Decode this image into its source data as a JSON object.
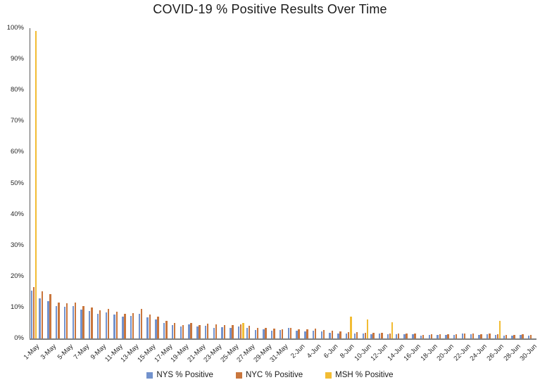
{
  "chart_data": {
    "type": "bar",
    "title": "COVID-19 % Positive Results Over Time",
    "xlabel": "",
    "ylabel": "",
    "ylim": [
      0,
      100
    ],
    "grid": false,
    "legend_position": "bottom",
    "y_ticks": [
      "0%",
      "10%",
      "20%",
      "30%",
      "40%",
      "50%",
      "60%",
      "70%",
      "80%",
      "90%",
      "100%"
    ],
    "x_tick_labels": [
      "1-May",
      "3-May",
      "5-May",
      "7-May",
      "9-May",
      "11-May",
      "13-May",
      "15-May",
      "17-May",
      "19-May",
      "21-May",
      "23-May",
      "25-May",
      "27-May",
      "29-May",
      "31-May",
      "2-Jun",
      "4-Jun",
      "6-Jun",
      "8-Jun",
      "10-Jun",
      "12-Jun",
      "14-Jun",
      "16-Jun",
      "18-Jun",
      "20-Jun",
      "22-Jun",
      "24-Jun",
      "26-Jun",
      "28-Jun",
      "30-Jun"
    ],
    "categories": [
      "1-May",
      "2-May",
      "3-May",
      "4-May",
      "5-May",
      "6-May",
      "7-May",
      "8-May",
      "9-May",
      "10-May",
      "11-May",
      "12-May",
      "13-May",
      "14-May",
      "15-May",
      "16-May",
      "17-May",
      "18-May",
      "19-May",
      "20-May",
      "21-May",
      "22-May",
      "23-May",
      "24-May",
      "25-May",
      "26-May",
      "27-May",
      "28-May",
      "29-May",
      "30-May",
      "31-May",
      "1-Jun",
      "2-Jun",
      "3-Jun",
      "4-Jun",
      "5-Jun",
      "6-Jun",
      "7-Jun",
      "8-Jun",
      "9-Jun",
      "10-Jun",
      "11-Jun",
      "12-Jun",
      "13-Jun",
      "14-Jun",
      "15-Jun",
      "16-Jun",
      "17-Jun",
      "18-Jun",
      "19-Jun",
      "20-Jun",
      "21-Jun",
      "22-Jun",
      "23-Jun",
      "24-Jun",
      "25-Jun",
      "26-Jun",
      "27-Jun",
      "28-Jun",
      "29-Jun",
      "30-Jun"
    ],
    "series": [
      {
        "name": "NYS % Positive",
        "color": "#7292CD",
        "values": [
          15.4,
          13.0,
          12.0,
          10.4,
          10.2,
          10.4,
          9.3,
          8.8,
          8.0,
          8.3,
          7.6,
          7.0,
          7.2,
          7.9,
          6.8,
          6.2,
          5.0,
          4.3,
          3.8,
          4.5,
          3.8,
          4.0,
          3.4,
          3.6,
          3.4,
          3.8,
          3.5,
          2.8,
          3.0,
          2.5,
          2.7,
          3.3,
          2.5,
          2.3,
          2.5,
          2.2,
          1.8,
          1.7,
          1.6,
          1.5,
          1.6,
          1.4,
          1.5,
          1.4,
          1.3,
          1.3,
          1.3,
          1.0,
          1.2,
          1.1,
          1.2,
          1.1,
          1.5,
          1.3,
          1.2,
          1.4,
          1.2,
          1.0,
          0.9,
          1.1,
          1.0
        ]
      },
      {
        "name": "NYC % Positive",
        "color": "#C9763D",
        "values": [
          16.6,
          15.2,
          14.3,
          11.6,
          11.3,
          11.5,
          10.5,
          10.0,
          9.0,
          9.6,
          8.7,
          8.0,
          8.2,
          9.5,
          7.6,
          7.0,
          5.6,
          5.0,
          4.4,
          4.9,
          4.3,
          4.7,
          4.5,
          4.3,
          4.2,
          4.5,
          4.1,
          3.4,
          3.5,
          3.1,
          2.9,
          3.3,
          3.0,
          2.9,
          3.1,
          2.8,
          2.4,
          2.2,
          2.1,
          2.0,
          1.9,
          1.8,
          1.9,
          1.7,
          1.6,
          1.5,
          1.5,
          1.2,
          1.4,
          1.3,
          1.4,
          1.3,
          1.7,
          1.6,
          1.4,
          1.6,
          1.4,
          1.2,
          1.1,
          1.3,
          1.2
        ]
      },
      {
        "name": "MSH % Positive",
        "color": "#F2BC33",
        "values": [
          99,
          0,
          0,
          0,
          0,
          0,
          0,
          0,
          0,
          0,
          0,
          0,
          0,
          0,
          0,
          0,
          0,
          0,
          0,
          0,
          0,
          0,
          0,
          0,
          0,
          5.0,
          0,
          0,
          0,
          0,
          0,
          0,
          0,
          0,
          0,
          0,
          0,
          0,
          7.0,
          0,
          6.2,
          0,
          0,
          5.3,
          0,
          0,
          0,
          0,
          0,
          0,
          0,
          0,
          0,
          0,
          0,
          0,
          5.6,
          0,
          0,
          0,
          0
        ]
      }
    ]
  }
}
